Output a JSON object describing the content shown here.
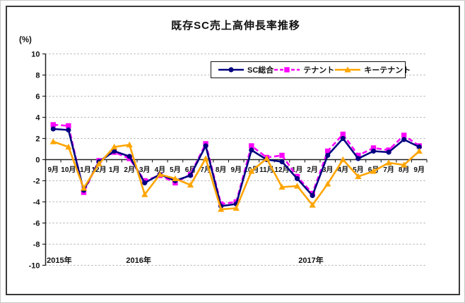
{
  "figure": {
    "title": "既存SC売上高伸長率推移",
    "y_unit_label": "(%)"
  },
  "chart_data": {
    "type": "line",
    "title": "既存SC売上高伸長率推移",
    "ylabel": "(%)",
    "xlabel": "",
    "ylim": [
      -10,
      10
    ],
    "ytick_step": 2,
    "grid": true,
    "gridline_color": "#a8a8a8",
    "legend_position": "top-inside",
    "categories": [
      "9月",
      "10月",
      "11月",
      "12月",
      "1月",
      "2月",
      "3月",
      "4月",
      "5月",
      "6月",
      "7月",
      "8月",
      "9月",
      "10月",
      "11月",
      "12月",
      "1月",
      "2月",
      "3月",
      "4月",
      "5月",
      "6月",
      "7月",
      "8月",
      "9月"
    ],
    "year_labels": [
      {
        "label": "2015年",
        "position": 0.4
      },
      {
        "label": "2016年",
        "position": 5.6
      },
      {
        "label": "2017年",
        "position": 16.9
      }
    ],
    "series": [
      {
        "name": "SC総合",
        "color": "#000080",
        "marker": "circle",
        "line": "solid",
        "z": 2,
        "values": [
          2.9,
          2.8,
          -2.9,
          -0.2,
          0.8,
          0.3,
          -2.2,
          -1.4,
          -2.0,
          -1.5,
          1.3,
          -4.4,
          -4.2,
          0.9,
          0.0,
          -0.2,
          -1.8,
          -3.4,
          0.4,
          2.0,
          0.1,
          0.8,
          0.7,
          1.9,
          1.2
        ]
      },
      {
        "name": "テナント",
        "color": "#ff00ff",
        "marker": "square",
        "line": "dashed",
        "z": 1,
        "values": [
          3.3,
          3.2,
          -3.1,
          -0.1,
          0.7,
          0.1,
          -2.0,
          -1.5,
          -2.2,
          -1.4,
          1.5,
          -4.2,
          -4.0,
          1.3,
          0.2,
          0.4,
          -1.6,
          -3.2,
          0.8,
          2.4,
          0.4,
          1.1,
          0.9,
          2.3,
          1.3
        ]
      },
      {
        "name": "キーテナント",
        "color": "#ffa500",
        "marker": "triangle",
        "line": "solid",
        "z": 3,
        "values": [
          1.7,
          1.2,
          -2.7,
          -0.4,
          1.2,
          1.4,
          -3.3,
          -1.4,
          -1.8,
          -2.4,
          0.1,
          -4.7,
          -4.6,
          -1.1,
          0.1,
          -2.6,
          -2.5,
          -4.3,
          -2.3,
          0.0,
          -1.6,
          -1.1,
          -0.3,
          -0.5,
          0.8
        ]
      }
    ]
  }
}
